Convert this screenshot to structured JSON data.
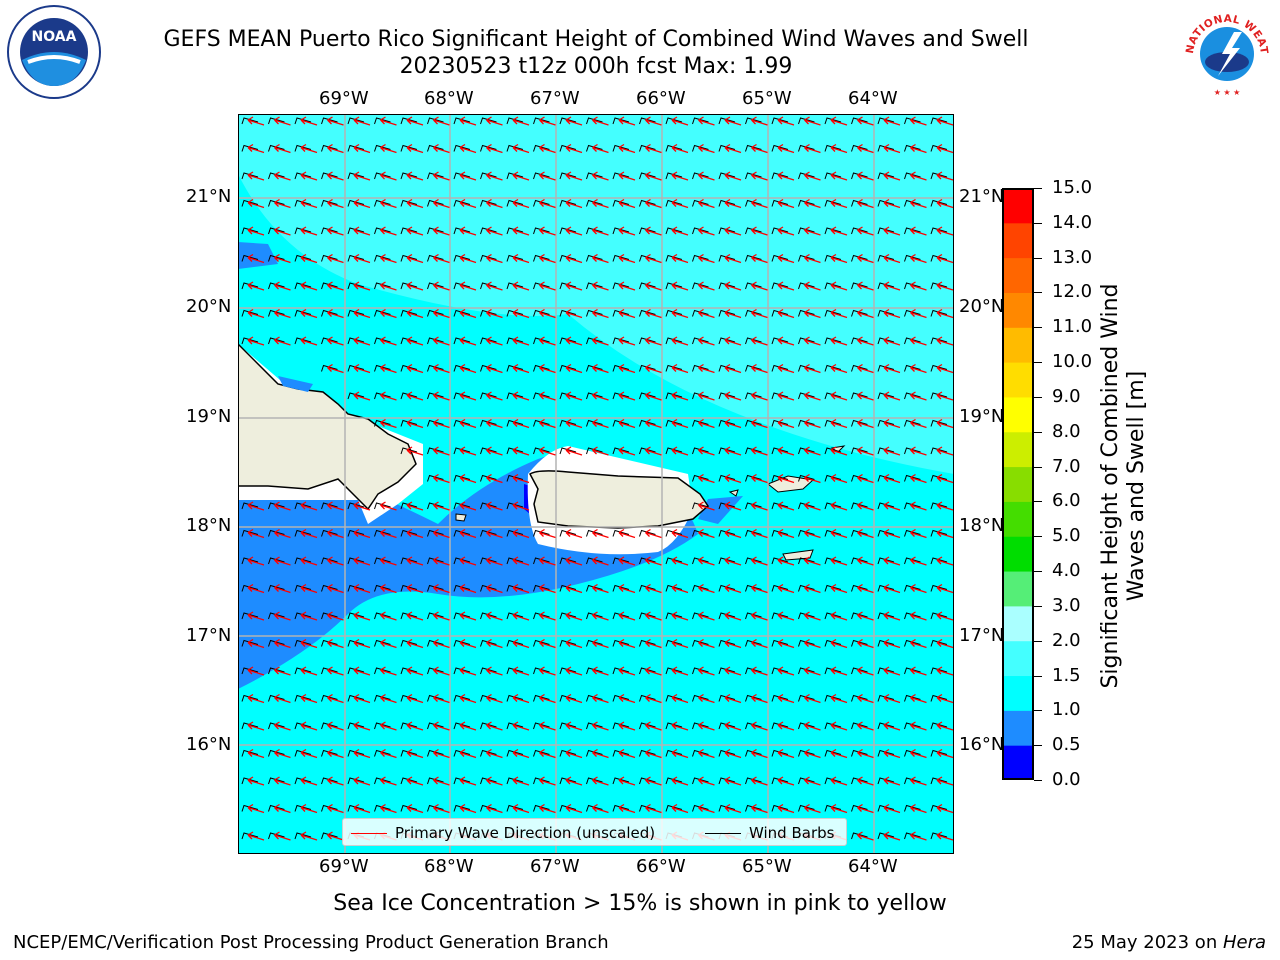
{
  "header": {
    "title_line1": "GEFS MEAN Puerto Rico Significant Height of Combined Wind Waves and Swell",
    "title_line2": "20230523 t12z 000h fcst   Max: 1.99"
  },
  "logos": {
    "left": "noaa-logo",
    "right": "nws-logo",
    "noaa_text": "NOAA",
    "nws_text": "NATIONAL WEATHER SERVICE"
  },
  "map": {
    "lon_labels": [
      "69°W",
      "68°W",
      "67°W",
      "66°W",
      "65°W",
      "64°W"
    ],
    "lat_labels": [
      "21°N",
      "20°N",
      "19°N",
      "18°N",
      "17°N",
      "16°N"
    ],
    "legend": {
      "wave_label": "Primary Wave Direction (unscaled)",
      "wind_label": "Wind Barbs",
      "wave_color": "#ff0000",
      "wind_color": "#000000"
    },
    "colors": {
      "ocean": "#00ffff",
      "moderate": "#44ffff",
      "shallow": "#1e8cff",
      "deep": "#0000ff",
      "land": "#eeeedd"
    }
  },
  "colorbar": {
    "label": "Significant Height of Combined Wind Waves and Swell [m]",
    "ticks": [
      "0.0",
      "0.5",
      "1.0",
      "1.5",
      "2.0",
      "3.0",
      "4.0",
      "5.0",
      "6.0",
      "7.0",
      "8.0",
      "9.0",
      "10.0",
      "11.0",
      "12.0",
      "13.0",
      "14.0",
      "15.0"
    ],
    "colors": [
      "#0000ff",
      "#1e8cff",
      "#00ffff",
      "#44ffff",
      "#aaffff",
      "#55ee77",
      "#00dd00",
      "#44dd00",
      "#88dd00",
      "#ccee00",
      "#ffff00",
      "#ffdd00",
      "#ffbb00",
      "#ff8800",
      "#ff6600",
      "#ff4400",
      "#ff0000"
    ]
  },
  "footnote": "Sea Ice Concentration > 15% is shown in pink to yellow",
  "footer": {
    "left": "NCEP/EMC/Verification Post Processing Product Generation Branch",
    "right_prefix": "25 May 2023 on ",
    "right_host": "Hera"
  }
}
